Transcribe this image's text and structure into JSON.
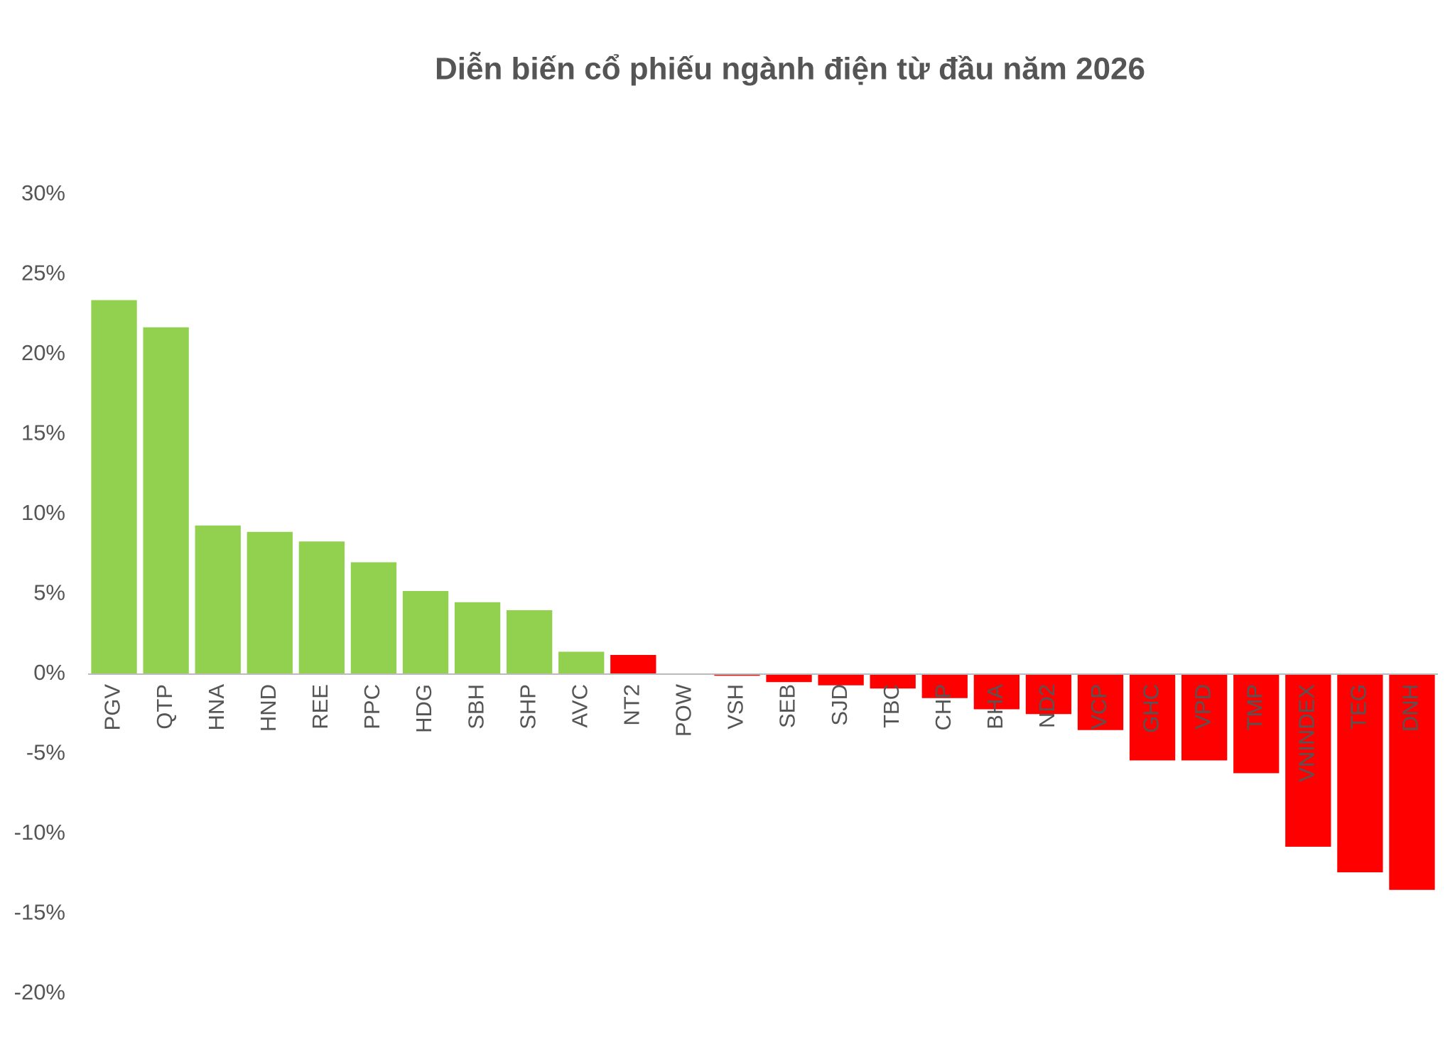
{
  "chart_data": {
    "type": "bar",
    "title": "Diễn biến cổ phiếu ngành điện từ đầu năm 2026",
    "categories": [
      "PGV",
      "QTP",
      "HNA",
      "HND",
      "REE",
      "PPC",
      "HDG",
      "SBH",
      "SHP",
      "AVC",
      "NT2",
      "POW",
      "VSH",
      "SEB",
      "SJD",
      "TBC",
      "CHP",
      "BHA",
      "ND2",
      "VCP",
      "GHC",
      "VPD",
      "TMP",
      "VNINDEX",
      "TEG",
      "DNH"
    ],
    "values": [
      23.4,
      21.7,
      9.3,
      8.9,
      8.3,
      7.0,
      5.2,
      4.5,
      4.0,
      1.4,
      1.2,
      0,
      -0.1,
      -0.5,
      -0.7,
      -0.9,
      -1.5,
      -2.2,
      -2.5,
      -3.5,
      -5.4,
      -5.4,
      -6.2,
      -10.8,
      -12.4,
      -13.5
    ],
    "colors": [
      "#92d050",
      "#92d050",
      "#92d050",
      "#92d050",
      "#92d050",
      "#92d050",
      "#92d050",
      "#92d050",
      "#92d050",
      "#92d050",
      "#ff0000",
      "#ff0000",
      "#ff0000",
      "#ff0000",
      "#ff0000",
      "#ff0000",
      "#ff0000",
      "#ff0000",
      "#ff0000",
      "#ff0000",
      "#ff0000",
      "#ff0000",
      "#ff0000",
      "#ff0000",
      "#ff0000",
      "#ff0000"
    ],
    "ylim": [
      -20,
      30
    ],
    "yticks": [
      {
        "value": 30,
        "label": "30%"
      },
      {
        "value": 25,
        "label": "25%"
      },
      {
        "value": 20,
        "label": "20%"
      },
      {
        "value": 15,
        "label": "15%"
      },
      {
        "value": 10,
        "label": "10%"
      },
      {
        "value": 5,
        "label": "5%"
      },
      {
        "value": 0,
        "label": "0%"
      },
      {
        "value": -5,
        "label": "-5%"
      },
      {
        "value": -10,
        "label": "-10%"
      },
      {
        "value": -15,
        "label": "-15%"
      },
      {
        "value": -20,
        "label": "-20%"
      }
    ],
    "grid": false
  }
}
